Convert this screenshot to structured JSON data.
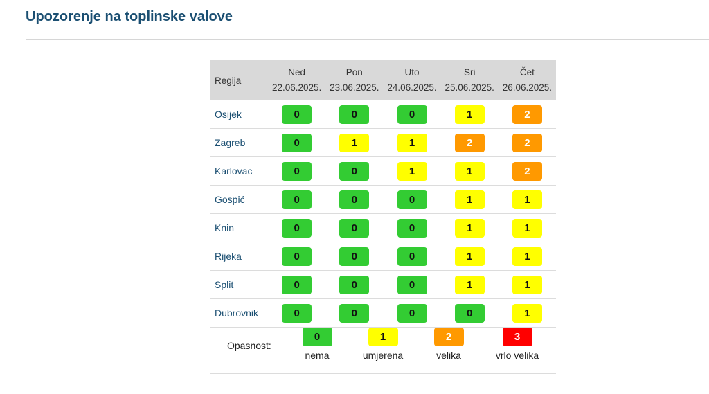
{
  "page": {
    "title": "Upozorenje na toplinske valove"
  },
  "table": {
    "region_header": "Regija",
    "days": [
      {
        "name": "Ned",
        "date": "22.06.2025."
      },
      {
        "name": "Pon",
        "date": "23.06.2025."
      },
      {
        "name": "Uto",
        "date": "24.06.2025."
      },
      {
        "name": "Sri",
        "date": "25.06.2025."
      },
      {
        "name": "Čet",
        "date": "26.06.2025."
      }
    ],
    "rows": [
      {
        "region": "Osijek",
        "levels": [
          "0",
          "0",
          "0",
          "1",
          "2"
        ]
      },
      {
        "region": "Zagreb",
        "levels": [
          "0",
          "1",
          "1",
          "2",
          "2"
        ]
      },
      {
        "region": "Karlovac",
        "levels": [
          "0",
          "0",
          "1",
          "1",
          "2"
        ]
      },
      {
        "region": "Gospić",
        "levels": [
          "0",
          "0",
          "0",
          "1",
          "1"
        ]
      },
      {
        "region": "Knin",
        "levels": [
          "0",
          "0",
          "0",
          "1",
          "1"
        ]
      },
      {
        "region": "Rijeka",
        "levels": [
          "0",
          "0",
          "0",
          "1",
          "1"
        ]
      },
      {
        "region": "Split",
        "levels": [
          "0",
          "0",
          "0",
          "1",
          "1"
        ]
      },
      {
        "region": "Dubrovnik",
        "levels": [
          "0",
          "0",
          "0",
          "0",
          "1"
        ]
      }
    ]
  },
  "legend": {
    "label": "Opasnost:",
    "items": [
      {
        "level": "0",
        "desc": "nema",
        "color": "#33cc33"
      },
      {
        "level": "1",
        "desc": "umjerena",
        "color": "#ffff00"
      },
      {
        "level": "2",
        "desc": "velika",
        "color": "#ff9900"
      },
      {
        "level": "3",
        "desc": "vrlo velika",
        "color": "#ff0000"
      }
    ]
  }
}
